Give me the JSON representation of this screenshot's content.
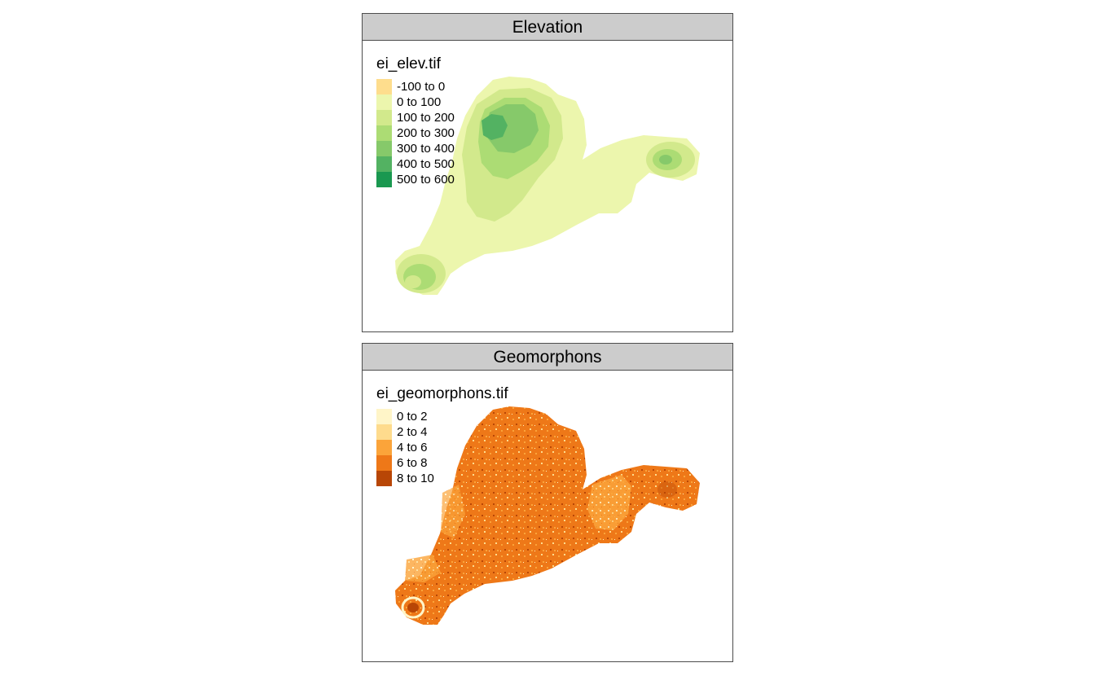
{
  "panels": [
    {
      "title": "Elevation",
      "legend_title": "ei_elev.tif",
      "legend": [
        {
          "label": "-100 to 0",
          "color": "#fedd8d"
        },
        {
          "label": "0 to 100",
          "color": "#ecf6ad"
        },
        {
          "label": "100 to 200",
          "color": "#d2e98c"
        },
        {
          "label": "200 to 300",
          "color": "#acdc74"
        },
        {
          "label": "300 to 400",
          "color": "#86c96a"
        },
        {
          "label": "400 to 500",
          "color": "#53b262"
        },
        {
          "label": "500 to 600",
          "color": "#1a9850"
        }
      ]
    },
    {
      "title": "Geomorphons",
      "legend_title": "ei_geomorphons.tif",
      "legend": [
        {
          "label": "0 to 2",
          "color": "#fff5c8"
        },
        {
          "label": "2 to 4",
          "color": "#fedb8d"
        },
        {
          "label": "4 to 6",
          "color": "#fba43a"
        },
        {
          "label": "6 to 8",
          "color": "#ee7818"
        },
        {
          "label": "8 to 10",
          "color": "#b84606"
        }
      ]
    }
  ]
}
